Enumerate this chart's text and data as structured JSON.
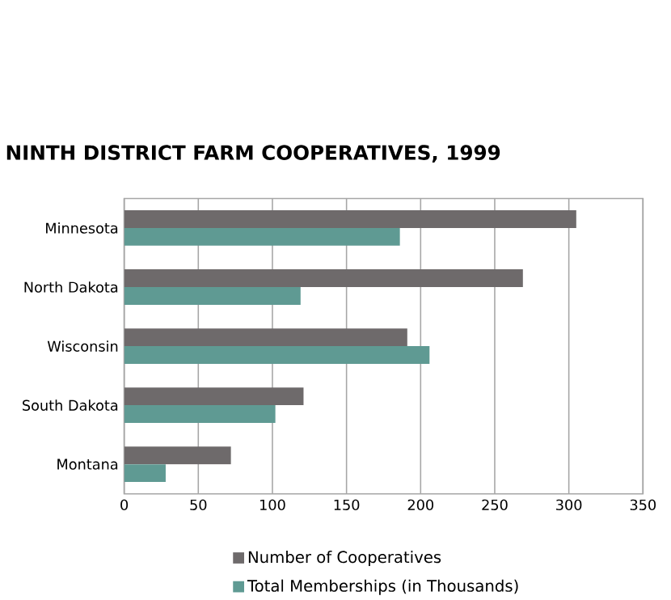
{
  "chart_data": {
    "type": "bar",
    "orientation": "horizontal",
    "title": "NINTH DISTRICT FARM COOPERATIVES, 1999",
    "categories": [
      "Minnesota",
      "North Dakota",
      "Wisconsin",
      "South Dakota",
      "Montana"
    ],
    "series": [
      {
        "name": "Number of Cooperatives",
        "color": "#6e6a6b",
        "values": [
          305,
          269,
          191,
          121,
          72
        ]
      },
      {
        "name": "Total Memberships (in Thousands)",
        "color": "#5f9a93",
        "values": [
          186,
          119,
          206,
          102,
          28
        ]
      }
    ],
    "xlim": [
      0,
      350
    ],
    "xticks": [
      0,
      50,
      100,
      150,
      200,
      250,
      300,
      350
    ],
    "grid": "x",
    "legend": "bottom"
  }
}
